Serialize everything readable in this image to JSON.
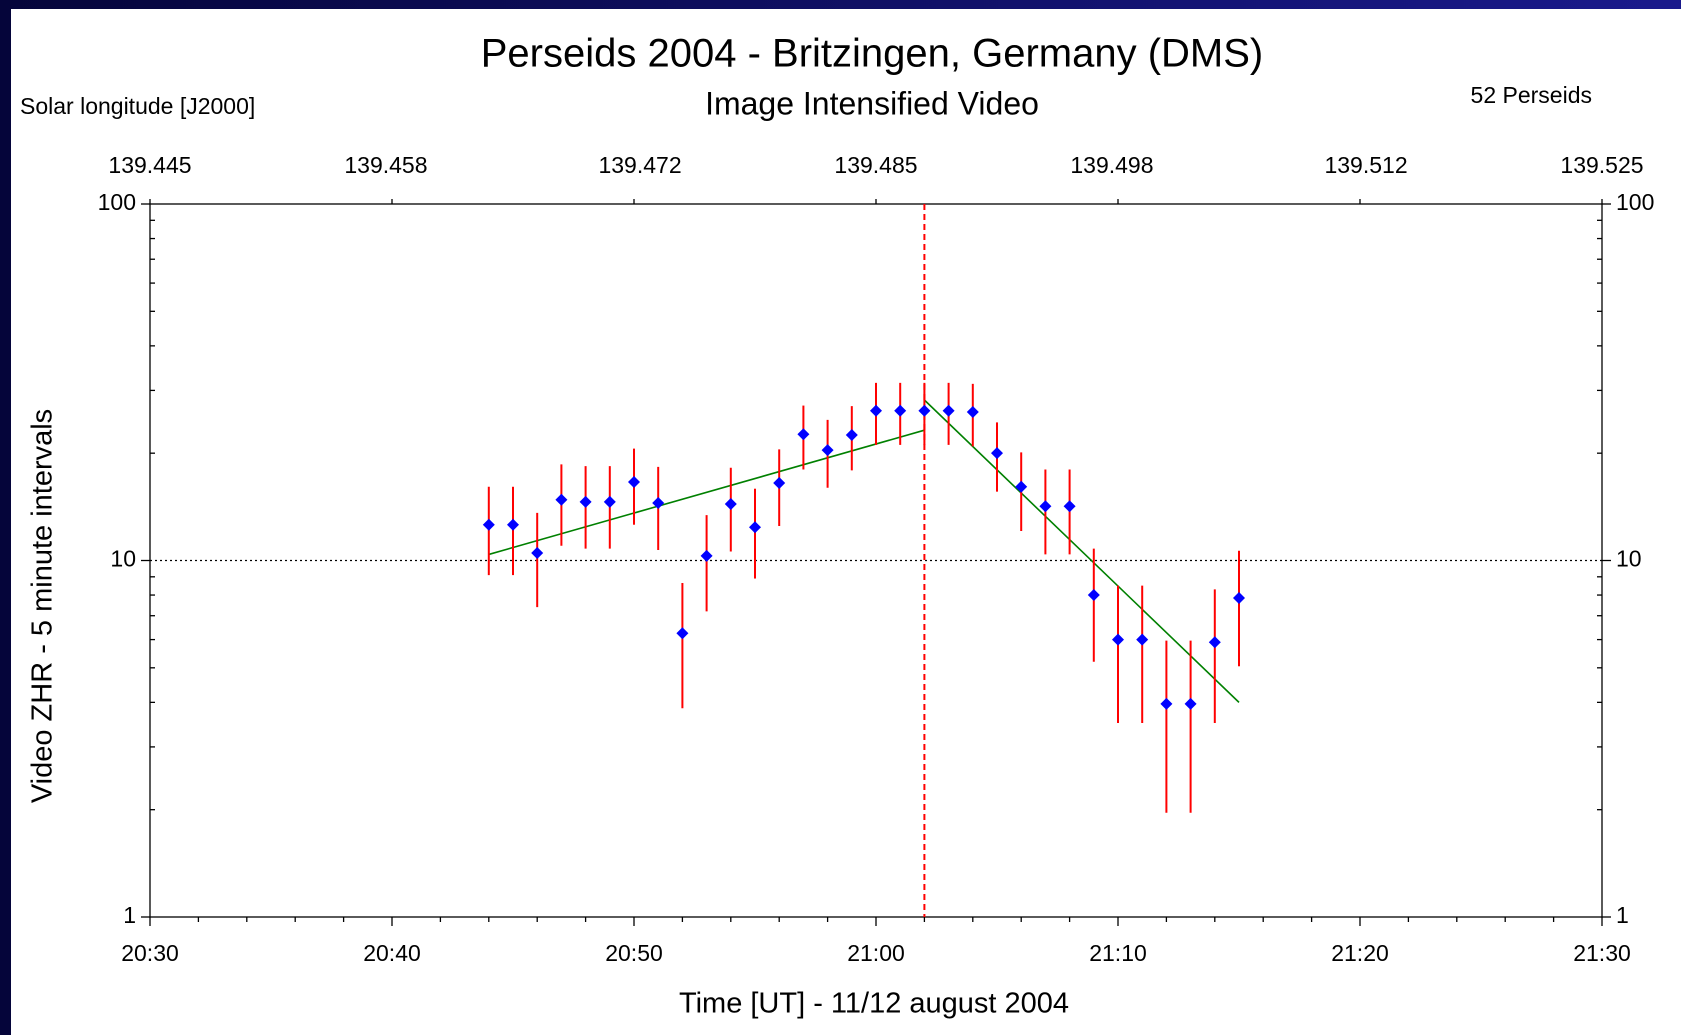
{
  "chart_data": {
    "type": "scatter",
    "title": "Perseids 2004 - Britzingen, Germany (DMS)",
    "subtitle": "Image Intensified Video",
    "x2label": "Solar longitude [J2000]",
    "annotation": "52 Perseids",
    "xlabel": "Time [UT] - 11/12 august 2004",
    "ylabel": "Video ZHR - 5 minute intervals",
    "x": [
      1244,
      1245,
      1246,
      1247,
      1248,
      1249,
      1250,
      1251,
      1252,
      1253,
      1254,
      1255,
      1256,
      1257,
      1258,
      1259,
      1260,
      1261,
      1262,
      1263,
      1264,
      1265,
      1266,
      1267,
      1268,
      1269,
      1270,
      1271,
      1272,
      1273,
      1274,
      1275
    ],
    "values": [
      12.6,
      12.6,
      10.5,
      14.8,
      14.6,
      14.6,
      16.6,
      14.5,
      6.25,
      10.3,
      14.4,
      12.4,
      16.5,
      22.6,
      20.4,
      22.5,
      26.3,
      26.3,
      26.3,
      26.3,
      26.1,
      20.0,
      16.1,
      14.2,
      14.2,
      8.0,
      6.0,
      6.0,
      3.96,
      3.96,
      5.9,
      7.85
    ],
    "errors": [
      3.5,
      3.5,
      3.1,
      3.8,
      3.8,
      3.8,
      4.0,
      3.8,
      2.4,
      3.1,
      3.8,
      3.5,
      4.0,
      4.6,
      4.4,
      4.6,
      5.2,
      5.2,
      5.2,
      5.2,
      5.2,
      4.4,
      4.0,
      3.8,
      3.8,
      2.8,
      2.5,
      2.5,
      2.0,
      2.0,
      2.4,
      2.8
    ],
    "color": "#0000ff",
    "error_color": "#ff0000",
    "fit_lines": [
      {
        "x": [
          1244,
          1262
        ],
        "values": [
          10.4,
          23.2
        ]
      },
      {
        "x": [
          1262,
          1275
        ],
        "values": [
          28.2,
          4.0
        ]
      }
    ],
    "fit_color": "#008000",
    "peak_x": 1262,
    "peak_color": "#ff0000",
    "reference_y": 10,
    "xlim": [
      1230,
      1290
    ],
    "xticks": [
      {
        "value": 1230,
        "label": "20:30"
      },
      {
        "value": 1240,
        "label": "20:40"
      },
      {
        "value": 1250,
        "label": "20:50"
      },
      {
        "value": 1260,
        "label": "21:00"
      },
      {
        "value": 1270,
        "label": "21:10"
      },
      {
        "value": 1280,
        "label": "21:20"
      },
      {
        "value": 1290,
        "label": "21:30"
      }
    ],
    "xminorticks": [
      1232,
      1234,
      1236,
      1238,
      1242,
      1244,
      1246,
      1248,
      1252,
      1254,
      1256,
      1258,
      1262,
      1264,
      1266,
      1268,
      1272,
      1274,
      1276,
      1278,
      1282,
      1284,
      1286,
      1288
    ],
    "x2lim": [
      139.445,
      139.525
    ],
    "x2ticks": [
      139.445,
      139.458,
      139.472,
      139.485,
      139.498,
      139.512,
      139.525
    ],
    "ylog": true,
    "ylim": [
      1,
      100
    ],
    "yticks": [
      1,
      10,
      100
    ],
    "yminorticks": [
      2,
      3,
      4,
      5,
      6,
      7,
      8,
      9,
      20,
      30,
      40,
      50,
      60,
      70,
      80,
      90
    ]
  }
}
